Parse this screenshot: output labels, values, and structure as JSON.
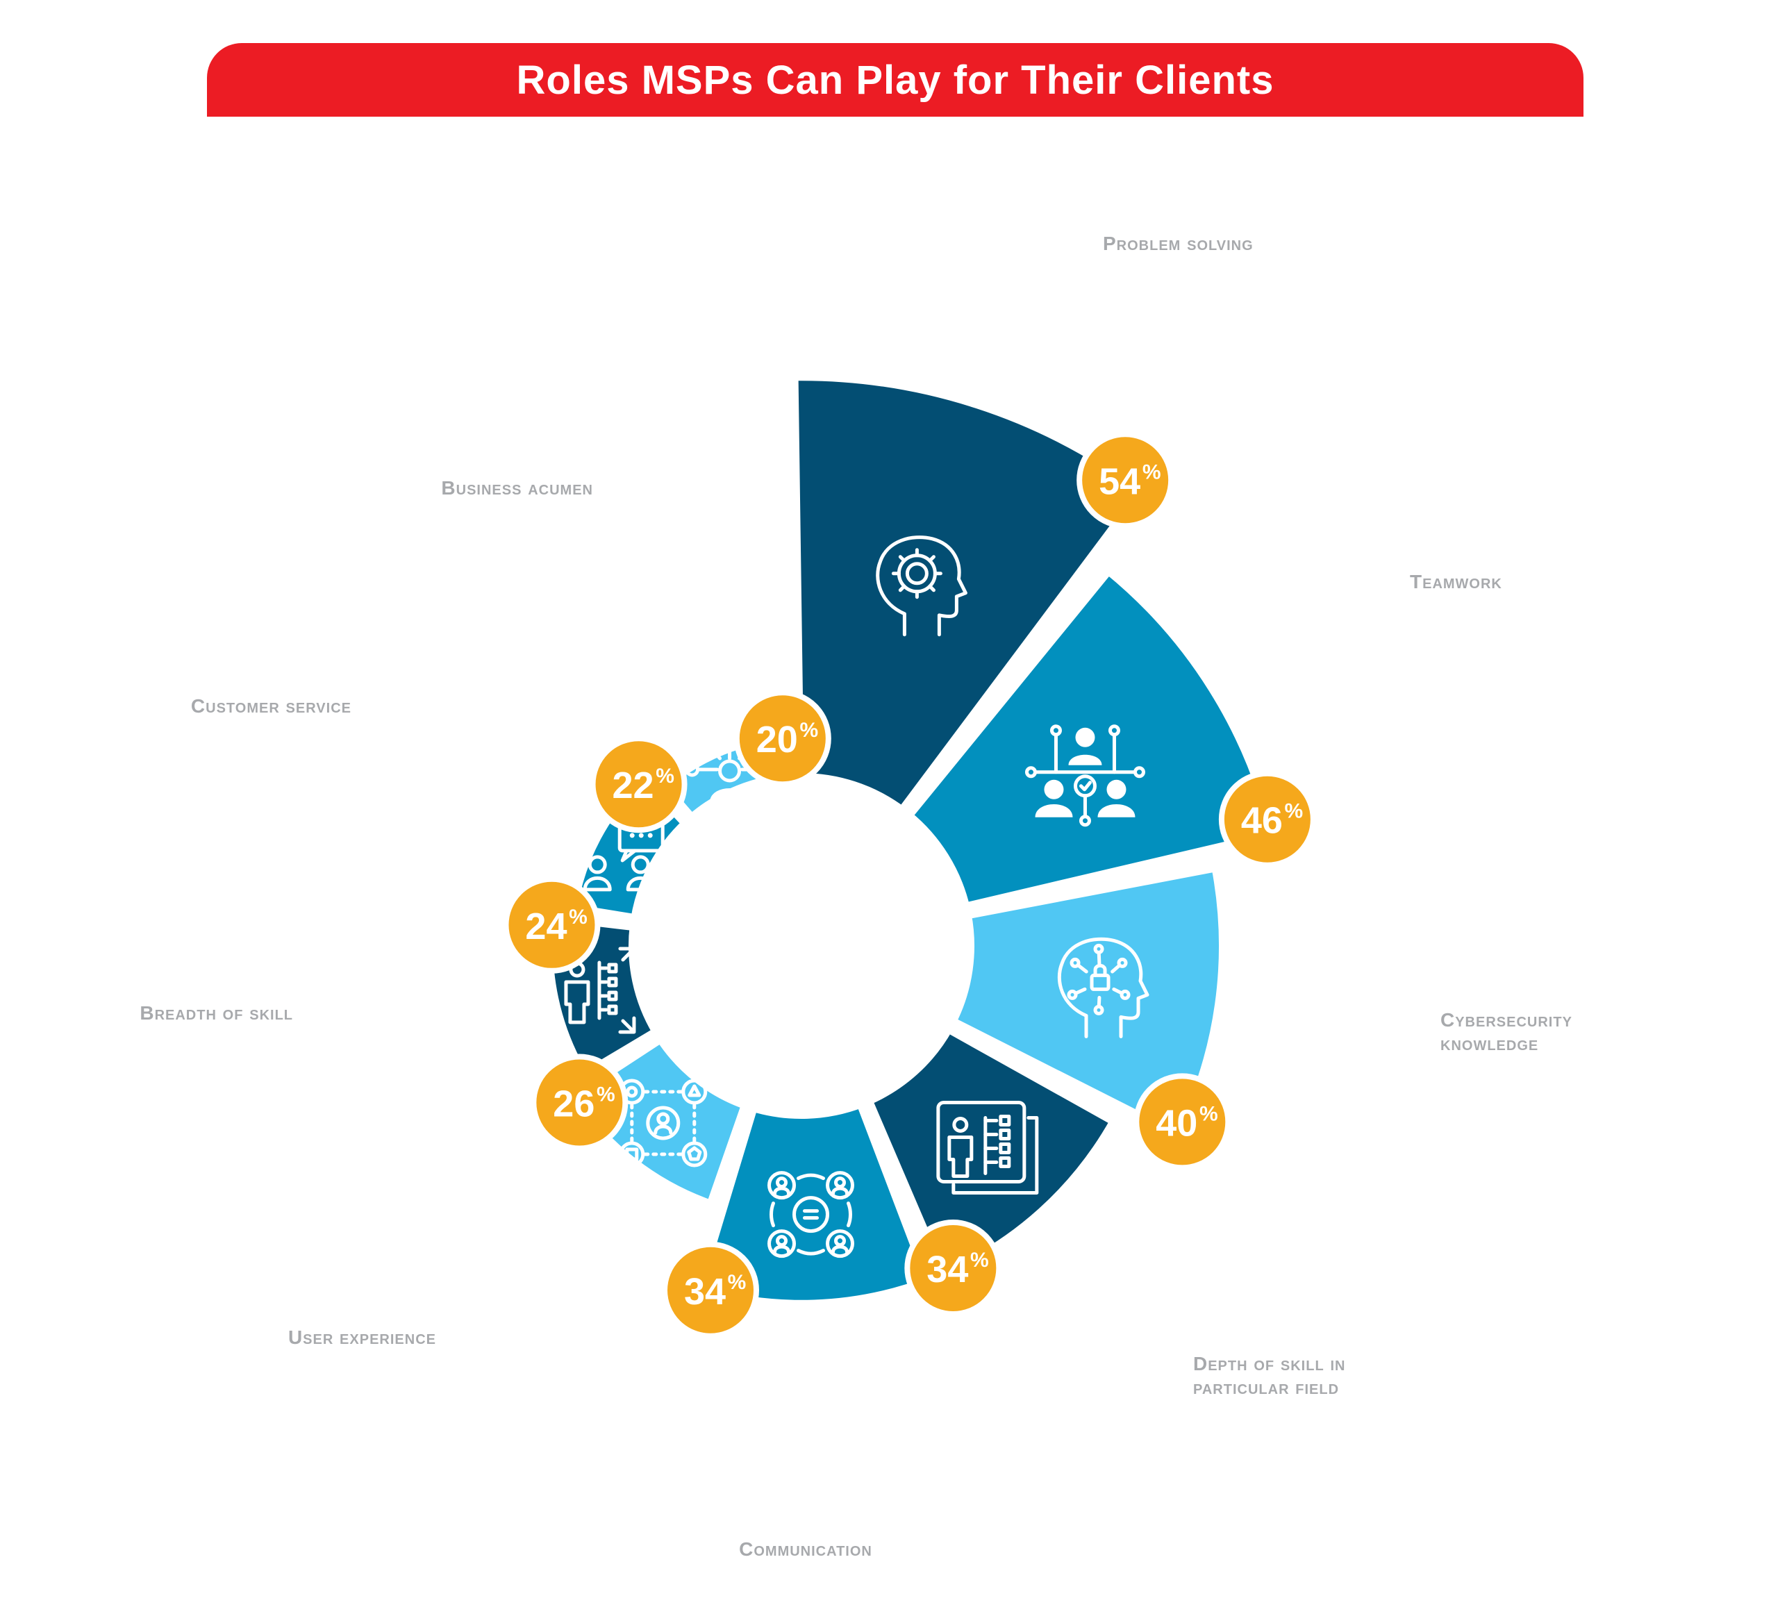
{
  "chart_data": {
    "type": "pie",
    "title": "Roles MSPs Can Play for Their Clients",
    "unit": "%",
    "segments": [
      {
        "label": "Problem solving",
        "value": 54,
        "color": "#034e73",
        "icon": "head-puzzle-gear-icon"
      },
      {
        "label": "Teamwork",
        "value": 46,
        "color": "#0290be",
        "icon": "team-network-icon"
      },
      {
        "label": "Cybersecurity knowledge",
        "value": 40,
        "color": "#50c7f3",
        "icon": "head-lock-network-icon"
      },
      {
        "label": "Depth of skill in particular field",
        "value": 34,
        "color": "#034e73",
        "icon": "presenter-board-icon"
      },
      {
        "label": "Communication",
        "value": 34,
        "color": "#0290be",
        "icon": "people-chat-cycle-icon"
      },
      {
        "label": "User experience",
        "value": 26,
        "color": "#50c7f3",
        "icon": "user-shapes-icon"
      },
      {
        "label": "Breadth of skill",
        "value": 24,
        "color": "#034e73",
        "icon": "person-expand-icon"
      },
      {
        "label": "Customer service",
        "value": 22,
        "color": "#0290be",
        "icon": "people-speech-bubbles-icon"
      },
      {
        "label": "Business acumen",
        "value": 20,
        "color": "#50c7f3",
        "icon": "person-network-icon"
      }
    ],
    "badge_color": "#f5a81c",
    "legend": "none",
    "grid": false
  }
}
